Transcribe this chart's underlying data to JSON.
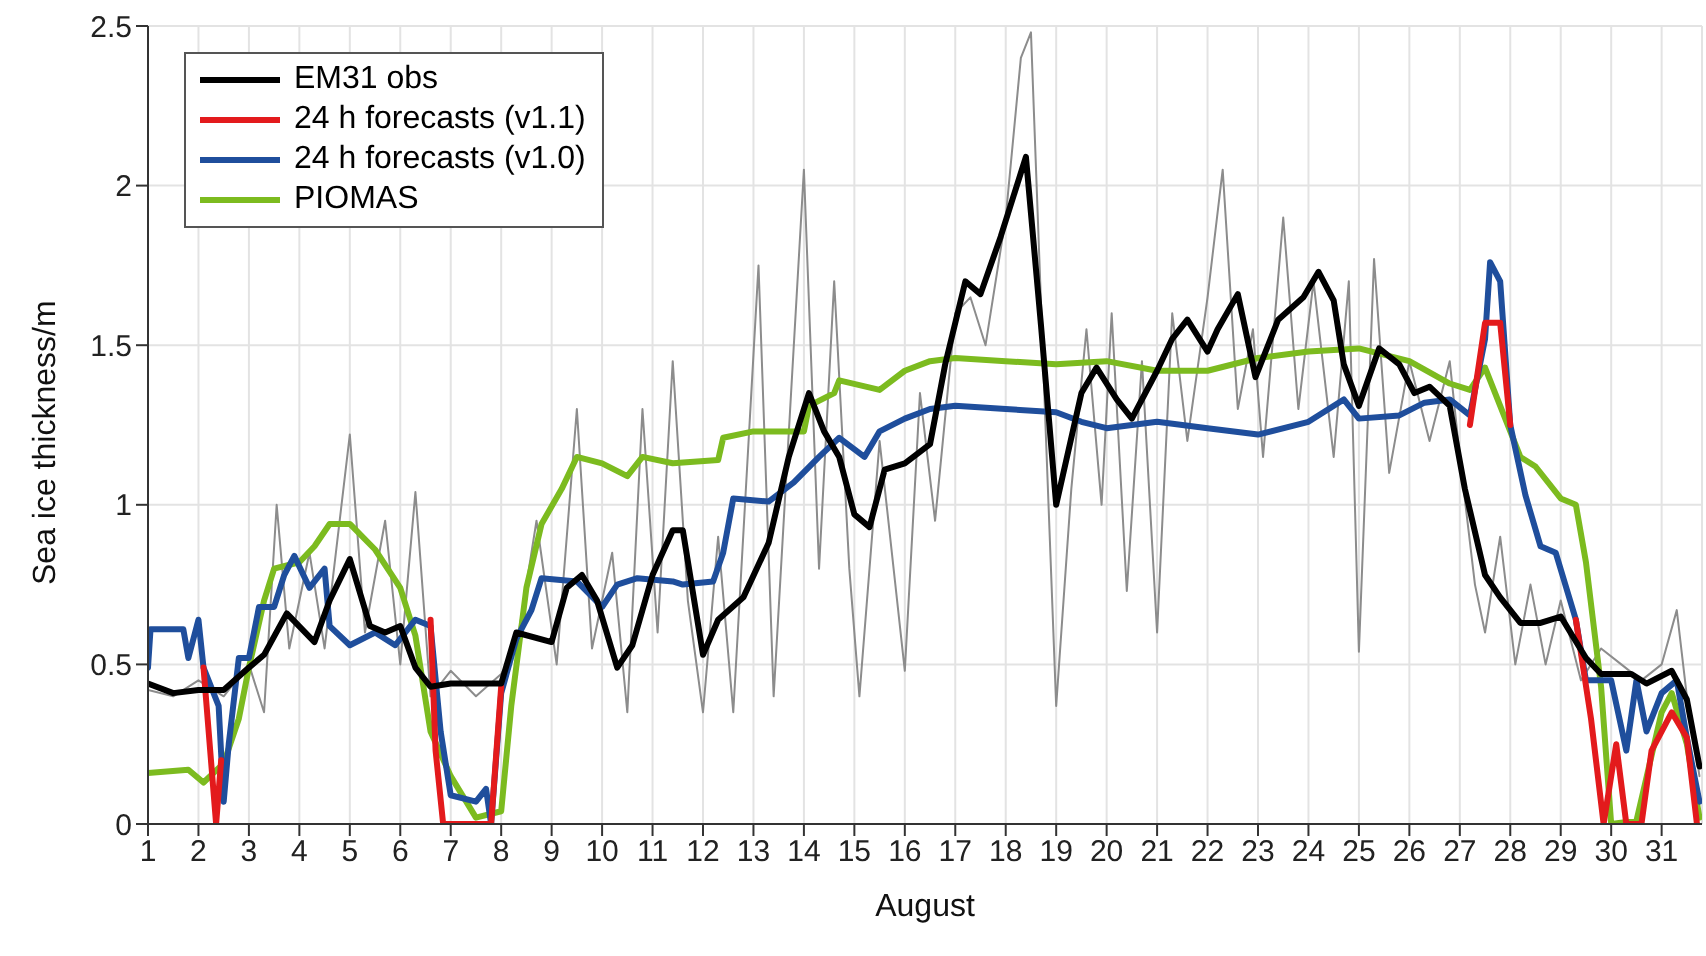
{
  "chart_data": {
    "type": "line",
    "xlabel": "August",
    "ylabel": "Sea ice thickness/m",
    "xlim": [
      1,
      31.8
    ],
    "xticks": [
      1,
      2,
      3,
      4,
      5,
      6,
      7,
      8,
      9,
      10,
      11,
      12,
      13,
      14,
      15,
      16,
      17,
      18,
      19,
      20,
      21,
      22,
      23,
      24,
      25,
      26,
      27,
      28,
      29,
      30,
      31
    ],
    "ylim": [
      0,
      2.5
    ],
    "yticks": [
      0,
      0.5,
      1,
      1.5,
      2,
      2.5
    ],
    "grid": true,
    "legend": "top left",
    "marker": "none",
    "line_style": "solid",
    "series": [
      {
        "name": "EM31 obs",
        "color": "#000000",
        "x": [
          1,
          1.5,
          2,
          2.5,
          3,
          3.3,
          3.75,
          4.3,
          4.6,
          5,
          5.4,
          5.7,
          6,
          6.3,
          6.6,
          7,
          8,
          8.3,
          9,
          9.3,
          9.6,
          9.9,
          10.3,
          10.6,
          11,
          11.4,
          11.6,
          12,
          12.3,
          12.8,
          13.3,
          13.7,
          14.1,
          14.4,
          14.7,
          15,
          15.3,
          15.6,
          16,
          16.5,
          16.8,
          17.2,
          17.5,
          17.9,
          18.4,
          18.7,
          19,
          19.5,
          19.8,
          20.2,
          20.5,
          21,
          21.3,
          21.6,
          22,
          22.2,
          22.6,
          22.95,
          23.4,
          23.9,
          24.2,
          24.5,
          24.7,
          25,
          25.4,
          25.8,
          26.1,
          26.4,
          26.8,
          27.1,
          27.5,
          27.8,
          28.2,
          28.6,
          29,
          29.5,
          29.8,
          30.4,
          30.7,
          31.2,
          31.5,
          31.75
        ],
        "values": [
          0.44,
          0.41,
          0.42,
          0.42,
          0.49,
          0.53,
          0.66,
          0.57,
          0.7,
          0.83,
          0.62,
          0.6,
          0.62,
          0.49,
          0.43,
          0.44,
          0.44,
          0.6,
          0.57,
          0.74,
          0.78,
          0.7,
          0.49,
          0.56,
          0.78,
          0.92,
          0.92,
          0.53,
          0.64,
          0.71,
          0.88,
          1.15,
          1.35,
          1.23,
          1.15,
          0.97,
          0.93,
          1.11,
          1.13,
          1.19,
          1.44,
          1.7,
          1.66,
          1.84,
          2.09,
          1.56,
          1.0,
          1.35,
          1.43,
          1.33,
          1.27,
          1.42,
          1.52,
          1.58,
          1.48,
          1.55,
          1.66,
          1.4,
          1.58,
          1.65,
          1.73,
          1.64,
          1.44,
          1.31,
          1.49,
          1.44,
          1.35,
          1.37,
          1.31,
          1.05,
          0.78,
          0.71,
          0.63,
          0.63,
          0.65,
          0.52,
          0.47,
          0.47,
          0.44,
          0.48,
          0.39,
          0.18
        ]
      },
      {
        "name": "24 h forecasts (v1.1)",
        "color": "#e31a1c",
        "x": [
          2.1,
          2.35,
          2.45,
          4,
          6.6,
          6.7,
          6.85,
          7.5,
          7.8,
          8,
          20,
          27.2,
          27.5,
          27.8,
          28,
          28.5,
          29.3,
          29.6,
          29.85,
          30.1,
          30.3,
          30.6,
          30.8,
          31.2,
          31.5,
          31.7
        ],
        "values": [
          0.49,
          0,
          0.2,
          null,
          0.64,
          0.23,
          0,
          0,
          0,
          0.43,
          null,
          1.25,
          1.57,
          1.57,
          1.25,
          null,
          0.64,
          0.33,
          0,
          0.25,
          0,
          0,
          0.23,
          0.35,
          0.27,
          0
        ]
      },
      {
        "name": "24 h forecasts (v1.0)",
        "color": "#1f4e9c",
        "x": [
          1,
          1.05,
          1.7,
          1.8,
          2,
          2.1,
          2.4,
          2.5,
          2.6,
          2.8,
          3,
          3.2,
          3.5,
          3.7,
          3.9,
          4.2,
          4.5,
          4.6,
          5,
          5.5,
          5.9,
          6.3,
          6.6,
          6.8,
          7,
          7.5,
          7.7,
          7.8,
          8,
          8.3,
          8.6,
          8.8,
          9.5,
          10,
          10.3,
          10.7,
          11.4,
          11.6,
          12.2,
          12.4,
          12.6,
          13.3,
          13.8,
          14.3,
          14.7,
          15.2,
          15.5,
          16,
          16.5,
          17,
          18,
          19,
          19.5,
          20,
          21,
          22,
          23,
          24,
          24.7,
          25,
          25.8,
          26.3,
          26.8,
          27.2,
          27.5,
          27.6,
          27.8,
          28,
          28.3,
          28.6,
          28.9,
          29.3,
          29.5,
          30,
          30.3,
          30.5,
          30.7,
          31,
          31.3,
          31.5,
          31.75
        ],
        "values": [
          0.49,
          0.61,
          0.61,
          0.52,
          0.64,
          0.49,
          0.37,
          0.07,
          0.25,
          0.52,
          0.52,
          0.68,
          0.68,
          0.78,
          0.84,
          0.74,
          0.8,
          0.62,
          0.56,
          0.6,
          0.56,
          0.64,
          0.62,
          0.29,
          0.09,
          0.07,
          0.11,
          0,
          0.41,
          0.58,
          0.67,
          0.77,
          0.76,
          0.68,
          0.75,
          0.77,
          0.76,
          0.75,
          0.76,
          0.85,
          1.02,
          1.01,
          1.07,
          1.15,
          1.21,
          1.15,
          1.23,
          1.27,
          1.3,
          1.31,
          1.3,
          1.29,
          1.26,
          1.24,
          1.26,
          1.24,
          1.22,
          1.26,
          1.33,
          1.27,
          1.28,
          1.32,
          1.33,
          1.28,
          1.52,
          1.76,
          1.7,
          1.25,
          1.03,
          0.87,
          0.85,
          0.64,
          0.45,
          0.45,
          0.23,
          0.45,
          0.29,
          0.41,
          0.45,
          0.27,
          0.07
        ]
      },
      {
        "name": "PIOMAS",
        "color": "#7cbb1f",
        "x": [
          1,
          1.8,
          2.1,
          2.5,
          2.8,
          3,
          3.3,
          3.5,
          4,
          4.3,
          4.6,
          5,
          5.5,
          6,
          6.3,
          6.6,
          7,
          7.5,
          8,
          8.2,
          8.5,
          8.8,
          9.2,
          9.5,
          10,
          10.5,
          10.8,
          11.4,
          12.3,
          12.4,
          13,
          14,
          14.1,
          14.6,
          14.7,
          15.5,
          16,
          16.5,
          17,
          18,
          19,
          20,
          21,
          22,
          23,
          24,
          25,
          26,
          26.8,
          27.2,
          27.5,
          27.8,
          28.2,
          28.5,
          29,
          29.3,
          29.5,
          29.8,
          30,
          30.5,
          31,
          31.2,
          31.5,
          31.75
        ],
        "values": [
          0.16,
          0.17,
          0.13,
          0.19,
          0.33,
          0.49,
          0.7,
          0.8,
          0.82,
          0.87,
          0.94,
          0.94,
          0.86,
          0.74,
          0.59,
          0.29,
          0.15,
          0.02,
          0.04,
          0.37,
          0.74,
          0.94,
          1.05,
          1.15,
          1.13,
          1.09,
          1.15,
          1.13,
          1.14,
          1.21,
          1.23,
          1.23,
          1.31,
          1.35,
          1.39,
          1.36,
          1.42,
          1.45,
          1.46,
          1.45,
          1.44,
          1.45,
          1.42,
          1.42,
          1.46,
          1.48,
          1.49,
          1.45,
          1.38,
          1.36,
          1.43,
          1.31,
          1.15,
          1.12,
          1.02,
          1.0,
          0.82,
          0.43,
          0,
          0.01,
          0.35,
          0.41,
          0.25,
          0.02
        ]
      },
      {
        "color": "#8c8c8c",
        "x": [
          1,
          1.5,
          2,
          2.5,
          3,
          3.3,
          3.55,
          3.8,
          4.2,
          4.5,
          5,
          5.3,
          5.7,
          6,
          6.3,
          6.6,
          7,
          7.5,
          8,
          8.3,
          8.7,
          9.1,
          9.5,
          9.8,
          10.2,
          10.5,
          10.8,
          11.1,
          11.4,
          11.7,
          12,
          12.3,
          12.6,
          13.1,
          13.4,
          14,
          14.3,
          14.6,
          14.9,
          15.1,
          15.5,
          16,
          16.3,
          16.6,
          17,
          17.3,
          17.6,
          18,
          18.3,
          18.5,
          18.8,
          19,
          19.3,
          19.6,
          19.9,
          20.1,
          20.4,
          20.7,
          21,
          21.3,
          21.6,
          22,
          22.3,
          22.6,
          22.9,
          23.1,
          23.5,
          23.8,
          24.1,
          24.5,
          24.8,
          25,
          25.3,
          25.6,
          26,
          26.4,
          26.8,
          27,
          27.3,
          27.5,
          27.8,
          28.1,
          28.4,
          28.7,
          29,
          29.4,
          29.8,
          30.2,
          30.6,
          31,
          31.3,
          31.5,
          31.75
        ],
        "values": [
          0.42,
          0.4,
          0.45,
          0.4,
          0.5,
          0.35,
          1.0,
          0.55,
          0.85,
          0.55,
          1.22,
          0.6,
          0.95,
          0.5,
          1.04,
          0.4,
          0.48,
          0.4,
          0.47,
          0.55,
          0.95,
          0.5,
          1.3,
          0.55,
          0.85,
          0.35,
          1.3,
          0.6,
          1.45,
          0.7,
          0.35,
          0.9,
          0.35,
          1.75,
          0.4,
          2.05,
          0.8,
          1.7,
          0.8,
          0.4,
          1.2,
          0.48,
          1.35,
          0.95,
          1.6,
          1.65,
          1.5,
          1.9,
          2.4,
          2.48,
          1.2,
          0.37,
          1.05,
          1.55,
          1.0,
          1.6,
          0.73,
          1.45,
          0.6,
          1.6,
          1.2,
          1.65,
          2.05,
          1.3,
          1.55,
          1.15,
          1.9,
          1.3,
          1.7,
          1.15,
          1.7,
          0.54,
          1.77,
          1.1,
          1.45,
          1.2,
          1.45,
          1.15,
          0.75,
          0.6,
          0.9,
          0.5,
          0.75,
          0.5,
          0.7,
          0.45,
          0.55,
          0.5,
          0.45,
          0.5,
          0.67,
          0.4,
          0.15
        ]
      }
    ]
  }
}
